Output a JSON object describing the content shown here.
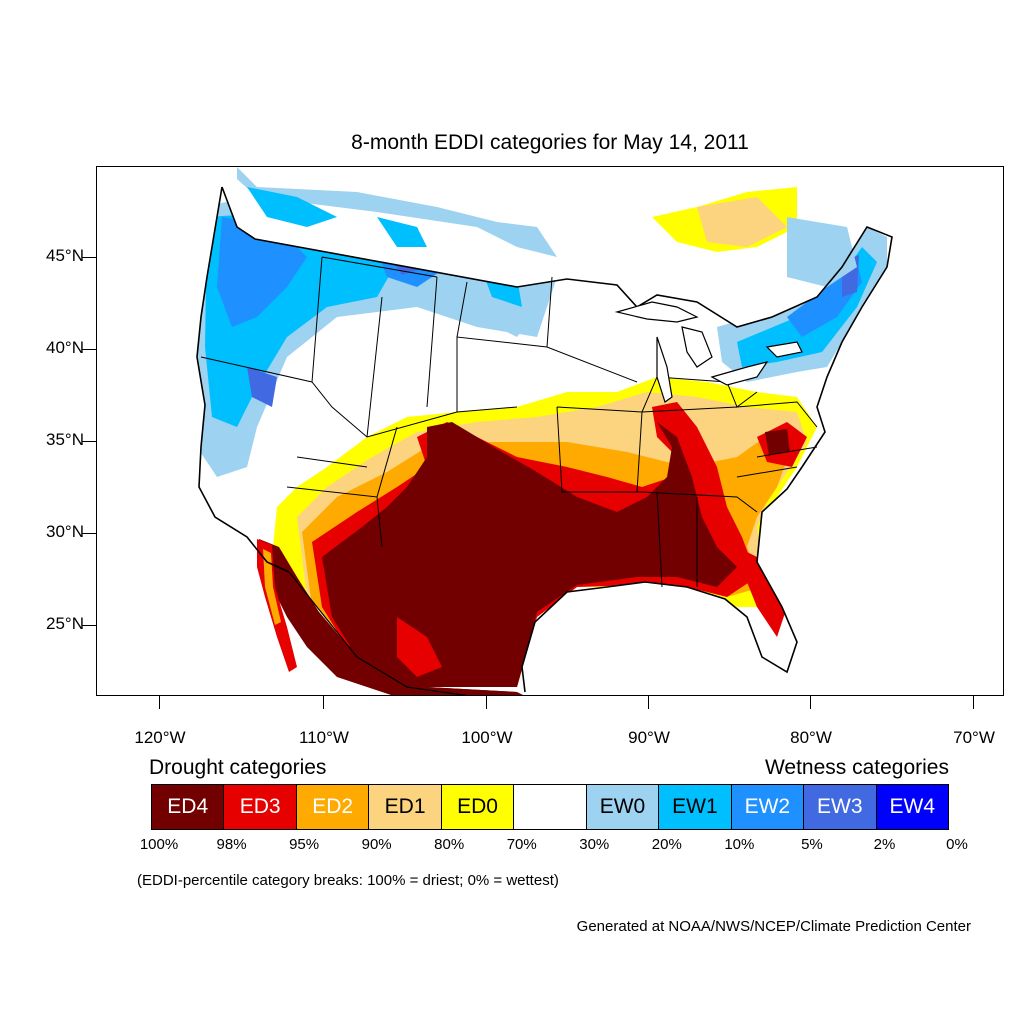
{
  "title": "8-month EDDI categories for May 14, 2011",
  "lat_labels": [
    "45°N",
    "40°N",
    "35°N",
    "30°N",
    "25°N"
  ],
  "lon_labels": [
    "120°W",
    "110°W",
    "100°W",
    "90°W",
    "80°W",
    "70°W"
  ],
  "legend": {
    "drought_heading": "Drought categories",
    "wetness_heading": "Wetness categories",
    "categories": [
      {
        "label": "ED4",
        "color": "#730000",
        "text_color": "#ffffff"
      },
      {
        "label": "ED3",
        "color": "#e60000",
        "text_color": "#ffffff"
      },
      {
        "label": "ED2",
        "color": "#ffaa00",
        "text_color": "#ffffff"
      },
      {
        "label": "ED1",
        "color": "#fcd37f",
        "text_color": "#000000"
      },
      {
        "label": "ED0",
        "color": "#ffff00",
        "text_color": "#000000"
      },
      {
        "label": "",
        "color": "#ffffff",
        "text_color": "#000000"
      },
      {
        "label": "EW0",
        "color": "#9dd2f0",
        "text_color": "#000000"
      },
      {
        "label": "EW1",
        "color": "#00bfff",
        "text_color": "#000000"
      },
      {
        "label": "EW2",
        "color": "#1e90ff",
        "text_color": "#ffffff"
      },
      {
        "label": "EW3",
        "color": "#4169e1",
        "text_color": "#ffffff"
      },
      {
        "label": "EW4",
        "color": "#0000ff",
        "text_color": "#ffffff"
      }
    ],
    "breaks": [
      "100%",
      "98%",
      "95%",
      "90%",
      "80%",
      "70%",
      "30%",
      "20%",
      "10%",
      "5%",
      "2%",
      "0%"
    ]
  },
  "note": "(EDDI-percentile category breaks: 100% = driest; 0% = wettest)",
  "credit": "Generated at NOAA/NWS/NCEP/Climate Prediction Center"
}
